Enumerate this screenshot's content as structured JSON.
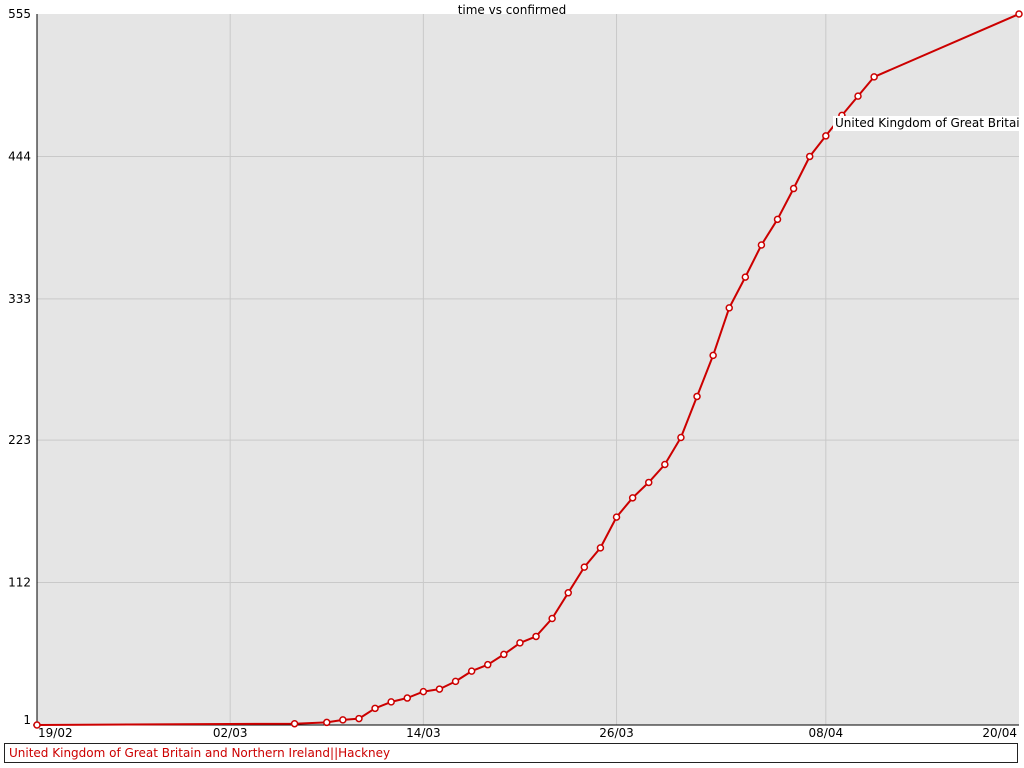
{
  "chart_data": {
    "type": "line",
    "title": "time vs confirmed",
    "xlabel": "",
    "ylabel": "",
    "x_range": [
      "2020-02-19",
      "2020-04-20"
    ],
    "x_ticks": [
      "19/02",
      "02/03",
      "14/03",
      "26/03",
      "08/04",
      "20/04"
    ],
    "y_range": [
      1,
      555
    ],
    "y_ticks": [
      "1",
      "112",
      "223",
      "333",
      "444",
      "555"
    ],
    "grid": true,
    "colors": {
      "plot_bg": "#e5e5e5",
      "grid": "#c9c9c9",
      "series": "#cc0000"
    },
    "series": [
      {
        "name": "United Kingdom of Great Britain and Northern Ireland||Hackney",
        "end_label": "United Kingdom of Great Britai",
        "points": [
          [
            "2020-02-19",
            1
          ],
          [
            "2020-03-06",
            2
          ],
          [
            "2020-03-08",
            3
          ],
          [
            "2020-03-09",
            5
          ],
          [
            "2020-03-10",
            6
          ],
          [
            "2020-03-11",
            14
          ],
          [
            "2020-03-12",
            19
          ],
          [
            "2020-03-13",
            22
          ],
          [
            "2020-03-14",
            27
          ],
          [
            "2020-03-15",
            29
          ],
          [
            "2020-03-16",
            35
          ],
          [
            "2020-03-17",
            43
          ],
          [
            "2020-03-18",
            48
          ],
          [
            "2020-03-19",
            56
          ],
          [
            "2020-03-20",
            65
          ],
          [
            "2020-03-21",
            70
          ],
          [
            "2020-03-22",
            84
          ],
          [
            "2020-03-23",
            104
          ],
          [
            "2020-03-24",
            124
          ],
          [
            "2020-03-25",
            139
          ],
          [
            "2020-03-26",
            163
          ],
          [
            "2020-03-27",
            178
          ],
          [
            "2020-03-28",
            190
          ],
          [
            "2020-03-29",
            204
          ],
          [
            "2020-03-30",
            225
          ],
          [
            "2020-03-31",
            257
          ],
          [
            "2020-04-01",
            289
          ],
          [
            "2020-04-02",
            326
          ],
          [
            "2020-04-03",
            350
          ],
          [
            "2020-04-04",
            375
          ],
          [
            "2020-04-05",
            395
          ],
          [
            "2020-04-06",
            419
          ],
          [
            "2020-04-07",
            444
          ],
          [
            "2020-04-08",
            460
          ],
          [
            "2020-04-09",
            476
          ],
          [
            "2020-04-10",
            491
          ],
          [
            "2020-04-11",
            506
          ],
          [
            "2020-04-20",
            555
          ]
        ]
      }
    ]
  },
  "legend": {
    "label": "United Kingdom of Great Britain and Northern Ireland||Hackney"
  }
}
